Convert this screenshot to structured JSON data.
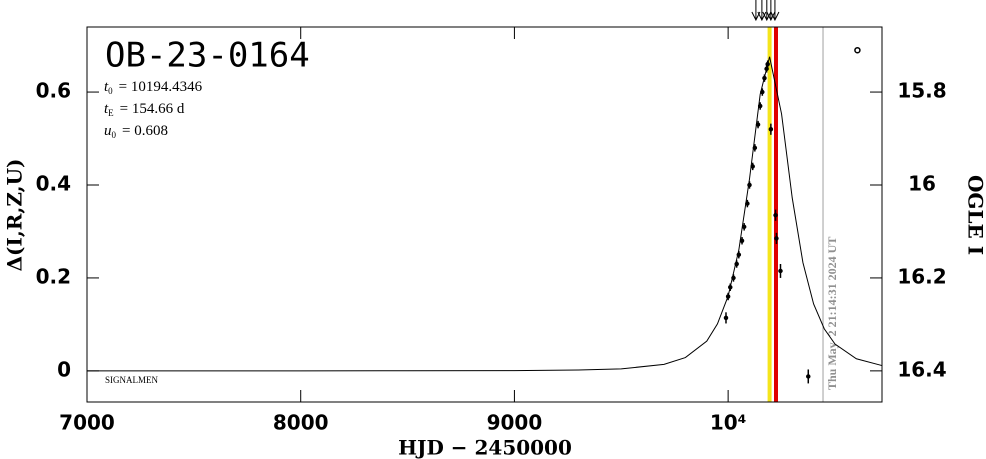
{
  "chart_data": {
    "type": "scatter",
    "title": "OB-23-0164",
    "params": [
      {
        "symbol": "t",
        "subscript": "0",
        "text": "= 10194.4346"
      },
      {
        "symbol": "t",
        "subscript": "E",
        "text": "= 154.66 d"
      },
      {
        "symbol": "u",
        "subscript": "0",
        "text": "= 0.608"
      }
    ],
    "x_label": "HJD − 2450000",
    "y_label": "Δ(I,R,Z,U)",
    "y2_label": "OGLE I",
    "corner_label": "SIGNALMEN",
    "annotation": "Thu May  2 21:14:31 2024 UT",
    "xlim": [
      7000,
      10720
    ],
    "xticks": [
      7000,
      8000,
      9000,
      {
        "value": 10000,
        "label": "10⁴"
      }
    ],
    "ylim": [
      -0.067,
      0.74
    ],
    "yticks": [
      0,
      0.2,
      0.4,
      0.6
    ],
    "y2lim": [
      16.467,
      15.66
    ],
    "y2ticks": [
      15.8,
      16,
      16.2,
      16.4
    ],
    "model": {
      "color": "#000000",
      "x": [
        7000,
        8000,
        8500,
        9000,
        9300,
        9500,
        9700,
        9800,
        9900,
        9950,
        10000,
        10050,
        10100,
        10150,
        10194,
        10250,
        10300,
        10350,
        10400,
        10450,
        10500,
        10600,
        10720
      ],
      "values": [
        0,
        0.0001,
        0.00015,
        0.0006,
        0.0019,
        0.0043,
        0.0139,
        0.0286,
        0.064,
        0.101,
        0.161,
        0.26,
        0.413,
        0.595,
        0.676,
        0.553,
        0.372,
        0.233,
        0.144,
        0.0904,
        0.0578,
        0.026,
        0.0114
      ]
    },
    "series": [
      {
        "color": "#000000",
        "marker": "dot",
        "x": [
          9990,
          10000,
          10010,
          10025,
          10040,
          10050,
          10065,
          10075,
          10090,
          10100,
          10115,
          10125,
          10140,
          10150,
          10160,
          10170,
          10180,
          10185,
          10200,
          10222,
          10226,
          10245,
          10375
        ],
        "values": [
          0.114,
          0.16,
          0.18,
          0.2,
          0.23,
          0.25,
          0.28,
          0.31,
          0.36,
          0.4,
          0.44,
          0.48,
          0.53,
          0.57,
          0.6,
          0.63,
          0.65,
          0.66,
          0.52,
          0.335,
          0.285,
          0.215,
          -0.012
        ],
        "errors": [
          0.012,
          0.008,
          0.008,
          0.008,
          0.008,
          0.008,
          0.008,
          0.008,
          0.008,
          0.008,
          0.008,
          0.008,
          0.008,
          0.008,
          0.008,
          0.008,
          0.008,
          0.008,
          0.012,
          0.012,
          0.012,
          0.015,
          0.015
        ]
      },
      {
        "color": "#000000",
        "marker": "circle",
        "x": [
          10605
        ],
        "values": [
          0.69
        ]
      }
    ],
    "vlines": [
      {
        "x": 10194,
        "color": "#f5e51b"
      },
      {
        "x": 10224,
        "color": "#e00000"
      },
      {
        "x": 10444,
        "color": "#a0a0a0"
      }
    ],
    "arrows_x": [
      10130,
      10158,
      10181,
      10200,
      10219
    ]
  }
}
